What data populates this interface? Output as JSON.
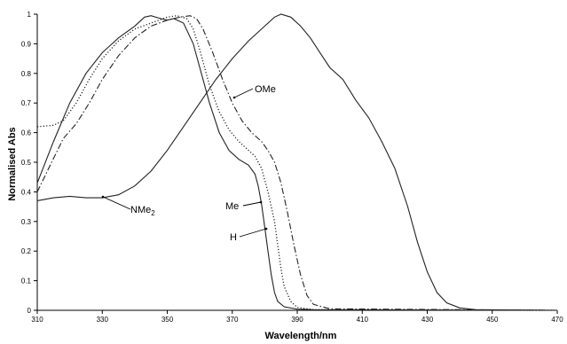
{
  "chart_data": {
    "type": "line",
    "xlabel": "Wavelength/nm",
    "ylabel": "Normalised Abs",
    "xlim": [
      310,
      470
    ],
    "ylim": [
      0,
      1
    ],
    "x_ticks": [
      "310",
      "330",
      "350",
      "370",
      "390",
      "410",
      "430",
      "450",
      "470"
    ],
    "y_ticks": [
      "0",
      "0.1",
      "0.2",
      "0.3",
      "0.4",
      "0.5",
      "0.6",
      "0.7",
      "0.8",
      "0.9",
      "1"
    ],
    "grid": false,
    "legend": "none",
    "series": [
      {
        "name": "H",
        "style": "solid",
        "points": [
          [
            310,
            0.43
          ],
          [
            315,
            0.57
          ],
          [
            320,
            0.7
          ],
          [
            325,
            0.8
          ],
          [
            330,
            0.87
          ],
          [
            335,
            0.92
          ],
          [
            340,
            0.96
          ],
          [
            343,
            0.99
          ],
          [
            345,
            0.995
          ],
          [
            348,
            0.985
          ],
          [
            350,
            0.98
          ],
          [
            352,
            0.985
          ],
          [
            355,
            0.97
          ],
          [
            358,
            0.9
          ],
          [
            360,
            0.82
          ],
          [
            363,
            0.7
          ],
          [
            366,
            0.6
          ],
          [
            369,
            0.54
          ],
          [
            372,
            0.51
          ],
          [
            375,
            0.49
          ],
          [
            377,
            0.46
          ],
          [
            378,
            0.42
          ],
          [
            379,
            0.36
          ],
          [
            380,
            0.28
          ],
          [
            381,
            0.2
          ],
          [
            382,
            0.12
          ],
          [
            383,
            0.06
          ],
          [
            384,
            0.03
          ],
          [
            386,
            0.012
          ],
          [
            390,
            0.004
          ],
          [
            395,
            0.002
          ],
          [
            470,
            0.0
          ]
        ]
      },
      {
        "name": "Me",
        "style": "dotted",
        "points": [
          [
            310,
            0.62
          ],
          [
            315,
            0.625
          ],
          [
            318,
            0.64
          ],
          [
            322,
            0.7
          ],
          [
            326,
            0.78
          ],
          [
            330,
            0.85
          ],
          [
            335,
            0.91
          ],
          [
            340,
            0.95
          ],
          [
            345,
            0.97
          ],
          [
            350,
            0.99
          ],
          [
            353,
            0.995
          ],
          [
            356,
            0.985
          ],
          [
            358,
            0.95
          ],
          [
            360,
            0.88
          ],
          [
            363,
            0.76
          ],
          [
            366,
            0.67
          ],
          [
            369,
            0.61
          ],
          [
            372,
            0.57
          ],
          [
            375,
            0.54
          ],
          [
            377,
            0.52
          ],
          [
            379,
            0.48
          ],
          [
            381,
            0.4
          ],
          [
            383,
            0.3
          ],
          [
            384,
            0.22
          ],
          [
            385,
            0.14
          ],
          [
            386,
            0.08
          ],
          [
            388,
            0.03
          ],
          [
            390,
            0.01
          ],
          [
            395,
            0.002
          ],
          [
            470,
            0.0
          ]
        ]
      },
      {
        "name": "OMe",
        "style": "dashdot",
        "points": [
          [
            310,
            0.4
          ],
          [
            314,
            0.49
          ],
          [
            318,
            0.58
          ],
          [
            322,
            0.63
          ],
          [
            326,
            0.7
          ],
          [
            330,
            0.78
          ],
          [
            335,
            0.86
          ],
          [
            340,
            0.92
          ],
          [
            345,
            0.96
          ],
          [
            350,
            0.98
          ],
          [
            354,
            0.99
          ],
          [
            357,
            0.995
          ],
          [
            359,
            0.985
          ],
          [
            361,
            0.95
          ],
          [
            364,
            0.87
          ],
          [
            367,
            0.78
          ],
          [
            370,
            0.7
          ],
          [
            373,
            0.64
          ],
          [
            376,
            0.6
          ],
          [
            379,
            0.57
          ],
          [
            381,
            0.54
          ],
          [
            383,
            0.5
          ],
          [
            385,
            0.43
          ],
          [
            387,
            0.33
          ],
          [
            389,
            0.22
          ],
          [
            391,
            0.12
          ],
          [
            393,
            0.05
          ],
          [
            395,
            0.02
          ],
          [
            400,
            0.005
          ],
          [
            470,
            0.0
          ]
        ]
      },
      {
        "name": "NMe2",
        "style": "solid",
        "points": [
          [
            310,
            0.37
          ],
          [
            315,
            0.38
          ],
          [
            320,
            0.385
          ],
          [
            325,
            0.38
          ],
          [
            330,
            0.38
          ],
          [
            335,
            0.39
          ],
          [
            340,
            0.42
          ],
          [
            345,
            0.47
          ],
          [
            350,
            0.54
          ],
          [
            355,
            0.62
          ],
          [
            360,
            0.7
          ],
          [
            365,
            0.78
          ],
          [
            370,
            0.85
          ],
          [
            375,
            0.91
          ],
          [
            380,
            0.96
          ],
          [
            383,
            0.99
          ],
          [
            385,
            1.0
          ],
          [
            388,
            0.99
          ],
          [
            391,
            0.96
          ],
          [
            394,
            0.92
          ],
          [
            397,
            0.87
          ],
          [
            400,
            0.82
          ],
          [
            404,
            0.78
          ],
          [
            408,
            0.71
          ],
          [
            412,
            0.65
          ],
          [
            416,
            0.57
          ],
          [
            420,
            0.48
          ],
          [
            424,
            0.35
          ],
          [
            427,
            0.23
          ],
          [
            430,
            0.13
          ],
          [
            433,
            0.06
          ],
          [
            436,
            0.025
          ],
          [
            440,
            0.008
          ],
          [
            445,
            0.002
          ],
          [
            470,
            0.0
          ]
        ]
      }
    ],
    "annotations": [
      {
        "text": "OMe",
        "series": "OMe"
      },
      {
        "text": "Me",
        "series": "Me"
      },
      {
        "text": "H",
        "series": "H"
      },
      {
        "text": "NMe",
        "subscript": "2",
        "series": "NMe2"
      }
    ]
  }
}
